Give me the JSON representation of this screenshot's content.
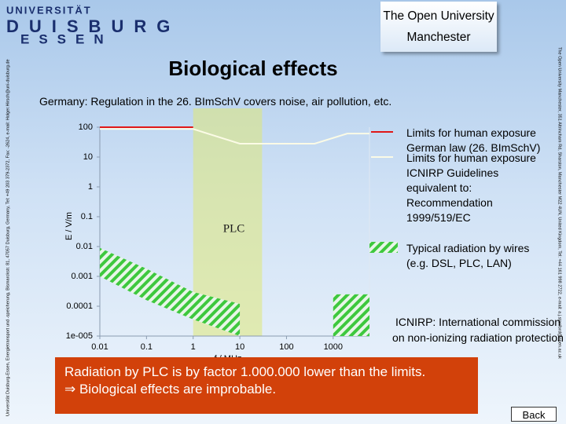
{
  "logo": {
    "line1": "UNIVERSITÄT",
    "line2": "DUISBURG",
    "line3": "ESSEN"
  },
  "partner": "The Open University Manchester",
  "title": "Biological effects",
  "subtitle": "Germany: Regulation in the 26. BImSchV covers noise, air pollution, etc.",
  "side_left": "Universität Duisburg-Essen, Energietransport und -speicherung, Bismarckstr. 81, 47057 Duisburg, Germany, Tel: +49 203 379-2372, Fax: -2624, e-mail: Holger.Hirsch@uni-duisburg.de",
  "side_right": "The Open University Manchester, 351 Altrincham Rd, Sharston, Manchester M22 4UN, United Kingdom, Tel: +44 161 998 2722, e-mail: a.j.stanford@open.ac.uk",
  "note": "ICNIRP: International commission on non-ionizing radiation protection",
  "conclusion": [
    "Radiation by PLC is by factor 1.000.000 lower than the limits.",
    "⇒ Biological effects are improbable."
  ],
  "back": "Back",
  "chart_data": {
    "type": "line",
    "xlabel": "f / MHz",
    "ylabel": "E / V/m",
    "xlog": true,
    "ylog": true,
    "xlim": [
      0.01,
      6000
    ],
    "ylim": [
      1e-05,
      100
    ],
    "xticks": [
      0.01,
      0.1,
      1,
      10,
      100,
      1000
    ],
    "yticks": [
      {
        "value": 1e-05,
        "label": "1e-005"
      },
      0.0001,
      0.001,
      0.01,
      0.1,
      1,
      10,
      100
    ],
    "highlight": {
      "label": "PLC",
      "x": [
        1,
        30
      ]
    },
    "series": [
      {
        "name": "Limits for human exposure German law (26. BImSchV)",
        "color": "#e01818",
        "x": [
          0.01,
          1
        ],
        "values": [
          100,
          100
        ]
      },
      {
        "name": "Limits for human exposure ICNIRP Guidelines equivalent to: Recommendation 1999/519/EC",
        "color": "#fbfbe6",
        "x": [
          0.01,
          1,
          10,
          400,
          2000,
          6000
        ],
        "values": [
          87,
          87,
          28,
          28,
          61,
          61
        ]
      },
      {
        "name": "Typical radiation by wires (e.g. DSL, PLC, LAN)",
        "color": "#3ec83e",
        "style": "hatched",
        "x": [
          0.01,
          0.1,
          1,
          10,
          100,
          1000,
          6000
        ],
        "values": [
          0.009,
          0.0018,
          0.0003,
          0.00012,
          null,
          0.00025,
          0.00025
        ],
        "lower": [
          0.001,
          0.00016,
          3.6e-05,
          1e-05,
          null,
          1e-05,
          1e-05
        ]
      }
    ]
  }
}
